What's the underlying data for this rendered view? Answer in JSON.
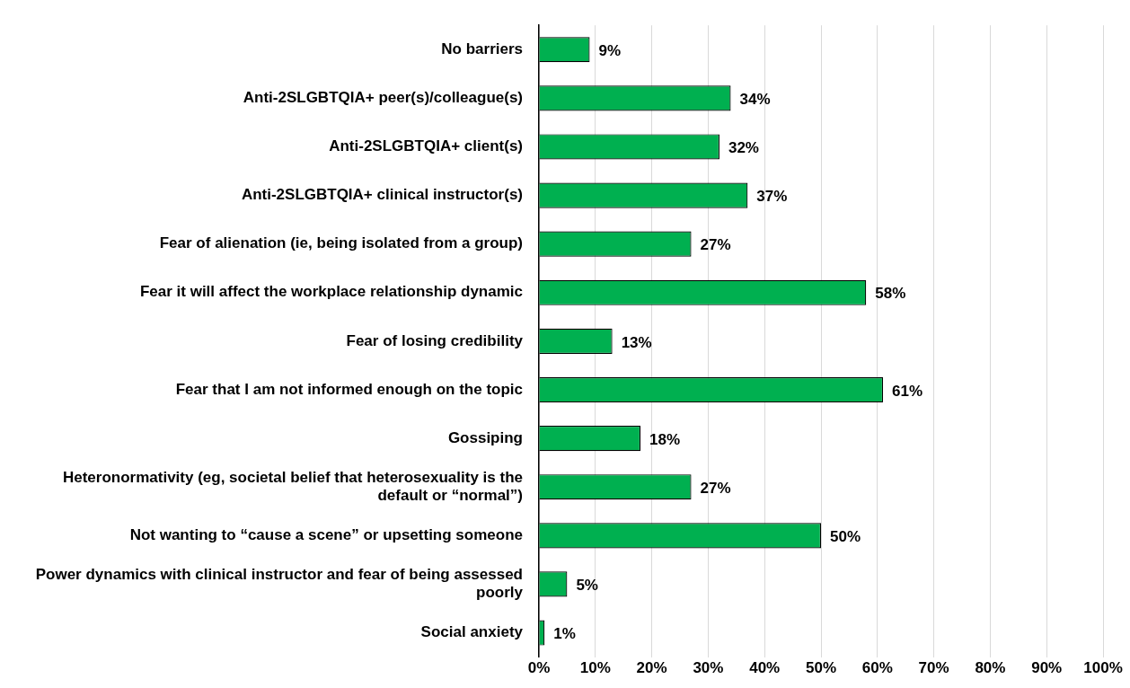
{
  "chart_data": {
    "type": "bar",
    "orientation": "horizontal",
    "categories": [
      "No barriers",
      "Anti-2SLGBTQIA+ peer(s)/colleague(s)",
      "Anti-2SLGBTQIA+ client(s)",
      "Anti-2SLGBTQIA+ clinical instructor(s)",
      "Fear of alienation (ie, being isolated from a group)",
      "Fear it will affect the workplace relationship dynamic",
      "Fear of losing credibility",
      "Fear that I am not informed enough on the topic",
      "Gossiping",
      "Heteronormativity (eg, societal belief that heterosexuality is the default or “normal”)",
      "Not wanting to “cause a scene” or upsetting someone",
      "Power dynamics with clinical instructor and fear of being assessed poorly",
      "Social anxiety"
    ],
    "values": [
      9,
      34,
      32,
      37,
      27,
      58,
      13,
      61,
      18,
      27,
      50,
      5,
      1
    ],
    "value_labels": [
      "9%",
      "34%",
      "32%",
      "37%",
      "27%",
      "58%",
      "13%",
      "61%",
      "18%",
      "27%",
      "50%",
      "5%",
      "1%"
    ],
    "color": "#00b050",
    "xlim": [
      0,
      100
    ],
    "xticks": [
      {
        "value": 0,
        "label": "0%"
      },
      {
        "value": 10,
        "label": "10%"
      },
      {
        "value": 20,
        "label": "20%"
      },
      {
        "value": 30,
        "label": "30%"
      },
      {
        "value": 40,
        "label": "40%"
      },
      {
        "value": 50,
        "label": "50%"
      },
      {
        "value": 60,
        "label": "60%"
      },
      {
        "value": 70,
        "label": "70%"
      },
      {
        "value": 80,
        "label": "80%"
      },
      {
        "value": 90,
        "label": "90%"
      },
      {
        "value": 100,
        "label": "100%"
      }
    ],
    "grid": "x"
  }
}
